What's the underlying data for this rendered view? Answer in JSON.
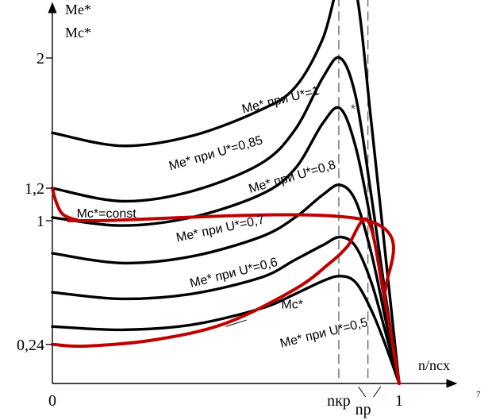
{
  "chart_data": {
    "type": "line",
    "title": "",
    "ylabel_line1": "Me*",
    "ylabel_line2": "Mc*",
    "xlabel": "n/ncx",
    "corner_mark": "7",
    "x_ticks": [
      {
        "value": 0,
        "label": "0"
      },
      {
        "value": 1,
        "label": "1"
      }
    ],
    "x_markers": [
      {
        "name": "nkp",
        "label": "nкр",
        "value": 0.826
      },
      {
        "name": "np",
        "label": "nр",
        "value": 0.91
      }
    ],
    "y_ticks": [
      {
        "value": 0.24,
        "label": "0,24"
      },
      {
        "value": 1,
        "label": "1"
      },
      {
        "value": 1.2,
        "label": "1,2"
      },
      {
        "value": 2,
        "label": "2"
      }
    ],
    "xlim": [
      0,
      1.15
    ],
    "ylim": [
      0,
      2.6
    ],
    "curve_marker": "*",
    "me_series": [
      {
        "name": "Me* при U*=1",
        "color": "#000000",
        "points": [
          [
            0,
            1.54
          ],
          [
            0.2,
            1.46
          ],
          [
            0.4,
            1.52
          ],
          [
            0.6,
            1.68
          ],
          [
            0.7,
            1.82
          ],
          [
            0.78,
            2.12
          ],
          [
            0.83,
            2.48
          ],
          [
            0.875,
            2.42
          ],
          [
            0.92,
            1.6
          ],
          [
            0.96,
            0.8
          ],
          [
            1,
            0
          ]
        ]
      },
      {
        "name": "Me* при U*=0,85",
        "color": "#000000",
        "points": [
          [
            0,
            1.2
          ],
          [
            0.2,
            1.12
          ],
          [
            0.4,
            1.18
          ],
          [
            0.6,
            1.35
          ],
          [
            0.7,
            1.56
          ],
          [
            0.78,
            1.88
          ],
          [
            0.83,
            2
          ],
          [
            0.875,
            1.76
          ],
          [
            0.92,
            1.15
          ],
          [
            0.96,
            0.55
          ],
          [
            1,
            0
          ]
        ]
      },
      {
        "name": "Me* при U*=0,8",
        "color": "#000000",
        "points": [
          [
            0,
            1.02
          ],
          [
            0.2,
            0.97
          ],
          [
            0.4,
            1.02
          ],
          [
            0.6,
            1.16
          ],
          [
            0.7,
            1.32
          ],
          [
            0.78,
            1.6
          ],
          [
            0.83,
            1.69
          ],
          [
            0.875,
            1.45
          ],
          [
            0.92,
            0.98
          ],
          [
            0.96,
            0.48
          ],
          [
            1,
            0
          ]
        ]
      },
      {
        "name": "Me* при U*=0,7",
        "color": "#000000",
        "points": [
          [
            0,
            0.8
          ],
          [
            0.2,
            0.74
          ],
          [
            0.4,
            0.78
          ],
          [
            0.6,
            0.9
          ],
          [
            0.7,
            1.02
          ],
          [
            0.78,
            1.16
          ],
          [
            0.83,
            1.22
          ],
          [
            0.875,
            1.12
          ],
          [
            0.92,
            0.8
          ],
          [
            0.96,
            0.4
          ],
          [
            1,
            0
          ]
        ]
      },
      {
        "name": "Me* при U*=0,6",
        "color": "#000000",
        "points": [
          [
            0,
            0.56
          ],
          [
            0.2,
            0.52
          ],
          [
            0.4,
            0.55
          ],
          [
            0.6,
            0.65
          ],
          [
            0.7,
            0.76
          ],
          [
            0.78,
            0.85
          ],
          [
            0.83,
            0.9
          ],
          [
            0.875,
            0.84
          ],
          [
            0.92,
            0.62
          ],
          [
            0.96,
            0.32
          ],
          [
            1,
            0
          ]
        ]
      },
      {
        "name": "Me* при U*=0,5",
        "color": "#000000",
        "points": [
          [
            0,
            0.35
          ],
          [
            0.2,
            0.33
          ],
          [
            0.4,
            0.36
          ],
          [
            0.6,
            0.46
          ],
          [
            0.7,
            0.55
          ],
          [
            0.78,
            0.63
          ],
          [
            0.83,
            0.66
          ],
          [
            0.875,
            0.62
          ],
          [
            0.92,
            0.45
          ],
          [
            0.96,
            0.24
          ],
          [
            1,
            0
          ]
        ]
      }
    ],
    "mc_series": [
      {
        "name": "Mc*=const",
        "color": "#c00000",
        "points": [
          [
            0,
            1.2
          ],
          [
            0.01,
            1.12
          ],
          [
            0.03,
            1.04
          ],
          [
            0.07,
            1.005
          ],
          [
            0.12,
            1
          ],
          [
            0.91,
            1
          ],
          [
            0.96,
            0.5
          ],
          [
            1,
            0
          ]
        ]
      },
      {
        "name": "Mc*",
        "color": "#c00000",
        "points": [
          [
            0,
            0.24
          ],
          [
            0.1,
            0.23
          ],
          [
            0.3,
            0.27
          ],
          [
            0.5,
            0.37
          ],
          [
            0.7,
            0.58
          ],
          [
            0.8,
            0.74
          ],
          [
            0.85,
            0.84
          ],
          [
            0.91,
            1
          ],
          [
            0.96,
            0.5
          ],
          [
            1,
            0
          ]
        ]
      }
    ],
    "series_labels": [
      {
        "text": "Me* при U*=1",
        "x": 0.55,
        "y": 1.66,
        "rotate": -14
      },
      {
        "text": "Me* при U*=0,85",
        "x": 0.34,
        "y": 1.31,
        "rotate": -16
      },
      {
        "text": "Me* при U*=0,8",
        "x": 0.57,
        "y": 1.17,
        "rotate": -16
      },
      {
        "text": "Mc*=const",
        "x": 0.07,
        "y": 1.02,
        "rotate": 0
      },
      {
        "text": "Me* при U*=0,7",
        "x": 0.36,
        "y": 0.87,
        "rotate": -12
      },
      {
        "text": "Me* при U*=0,6",
        "x": 0.4,
        "y": 0.59,
        "rotate": -14
      },
      {
        "text": "Mc*",
        "x": 0.66,
        "y": 0.46,
        "rotate": 0
      },
      {
        "text": "Me* при U*=0,5",
        "x": 0.66,
        "y": 0.22,
        "rotate": -14
      }
    ]
  }
}
